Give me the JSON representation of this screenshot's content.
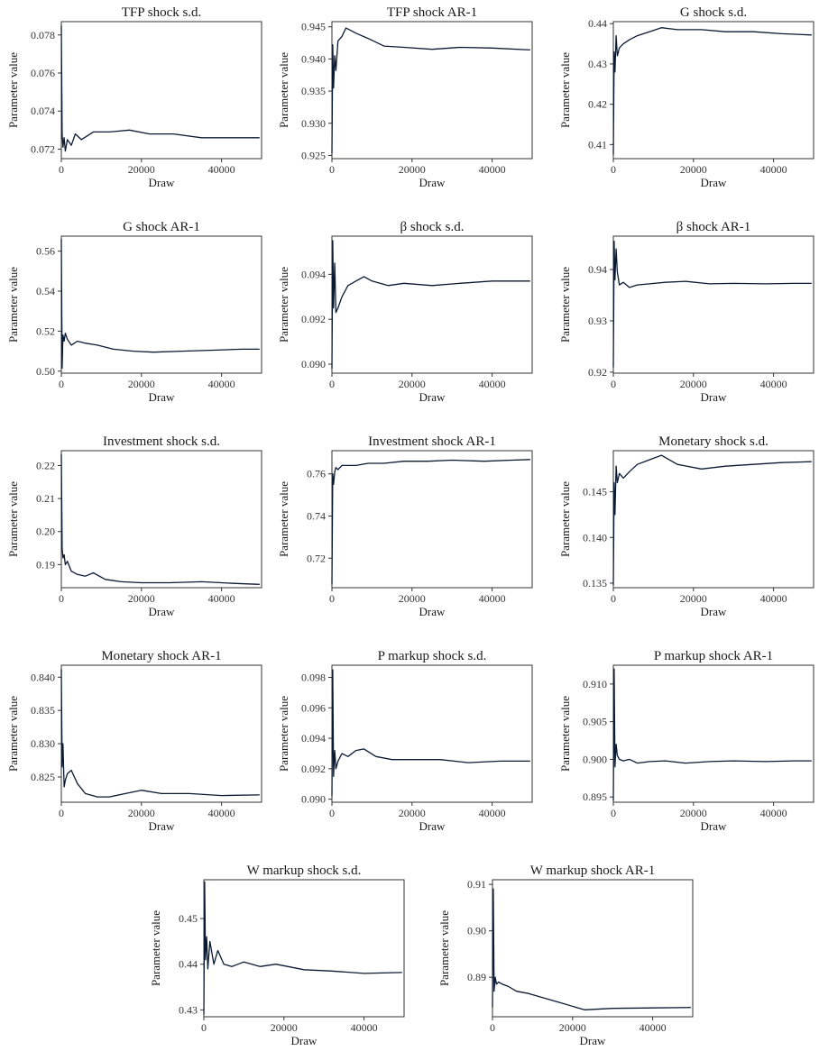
{
  "figure": {
    "line_color": "#0b1a33"
  },
  "chart_data": [
    {
      "type": "line",
      "title": "TFP shock s.d.",
      "xlabel": "Draw",
      "ylabel": "Parameter value",
      "xlim": [
        0,
        50000
      ],
      "ylim": [
        0.0715,
        0.0787
      ],
      "xticks": [
        0,
        20000,
        40000
      ],
      "xtick_labels": [
        "0",
        "20000",
        "40000"
      ],
      "yticks": [
        0.072,
        0.074,
        0.076,
        0.078
      ],
      "ytick_labels": [
        "0.072",
        "0.074",
        "0.076",
        "0.078"
      ],
      "series": [
        {
          "x": [
            0,
            200,
            400,
            700,
            1000,
            1500,
            2500,
            3500,
            5000,
            8000,
            12000,
            17000,
            22000,
            28000,
            35000,
            42000,
            49500
          ],
          "y": [
            0.0785,
            0.0728,
            0.0721,
            0.0726,
            0.0719,
            0.0725,
            0.0722,
            0.0728,
            0.0725,
            0.0729,
            0.0729,
            0.073,
            0.0728,
            0.0728,
            0.0726,
            0.0726,
            0.0726
          ]
        }
      ]
    },
    {
      "type": "line",
      "title": "TFP shock AR-1",
      "xlabel": "Draw",
      "ylabel": "Parameter value",
      "xlim": [
        0,
        50000
      ],
      "ylim": [
        0.9245,
        0.9458
      ],
      "xticks": [
        0,
        20000,
        40000
      ],
      "xtick_labels": [
        "0",
        "20000",
        "40000"
      ],
      "yticks": [
        0.925,
        0.93,
        0.935,
        0.94,
        0.945
      ],
      "ytick_labels": [
        "0.925",
        "0.930",
        "0.935",
        "0.940",
        "0.945"
      ],
      "series": [
        {
          "x": [
            0,
            200,
            400,
            700,
            1000,
            1500,
            2500,
            3500,
            4500,
            6000,
            9000,
            13000,
            18000,
            25000,
            32000,
            40000,
            49500
          ],
          "y": [
            0.9253,
            0.9422,
            0.9355,
            0.9405,
            0.9382,
            0.9428,
            0.9435,
            0.9448,
            0.9445,
            0.944,
            0.9432,
            0.942,
            0.9418,
            0.9415,
            0.9418,
            0.9417,
            0.9414
          ]
        }
      ]
    },
    {
      "type": "line",
      "title": "G shock s.d.",
      "xlabel": "Draw",
      "ylabel": "Parameter value",
      "xlim": [
        0,
        50000
      ],
      "ylim": [
        0.4065,
        0.4405
      ],
      "xticks": [
        0,
        20000,
        40000
      ],
      "xtick_labels": [
        "0",
        "20000",
        "40000"
      ],
      "yticks": [
        0.41,
        0.42,
        0.43,
        0.44
      ],
      "ytick_labels": [
        "0.41",
        "0.42",
        "0.43",
        "0.44"
      ],
      "series": [
        {
          "x": [
            0,
            200,
            400,
            700,
            1000,
            1500,
            2500,
            4000,
            6000,
            9000,
            12000,
            16000,
            22000,
            28000,
            35000,
            42000,
            49500
          ],
          "y": [
            0.4075,
            0.433,
            0.428,
            0.437,
            0.432,
            0.434,
            0.435,
            0.436,
            0.437,
            0.438,
            0.439,
            0.4385,
            0.4385,
            0.438,
            0.438,
            0.4375,
            0.4372
          ]
        }
      ]
    },
    {
      "type": "line",
      "title": "G shock AR-1",
      "xlabel": "Draw",
      "ylabel": "Parameter value",
      "xlim": [
        0,
        50000
      ],
      "ylim": [
        0.499,
        0.5675
      ],
      "xticks": [
        0,
        20000,
        40000
      ],
      "xtick_labels": [
        "0",
        "20000",
        "40000"
      ],
      "yticks": [
        0.5,
        0.52,
        0.54,
        0.56
      ],
      "ytick_labels": [
        "0.50",
        "0.52",
        "0.54",
        "0.56"
      ],
      "series": [
        {
          "x": [
            0,
            200,
            400,
            700,
            1000,
            1500,
            2500,
            4000,
            6000,
            9000,
            13000,
            18000,
            23000,
            30000,
            38000,
            45000,
            49500
          ],
          "y": [
            0.566,
            0.5015,
            0.518,
            0.515,
            0.519,
            0.516,
            0.513,
            0.515,
            0.514,
            0.513,
            0.511,
            0.51,
            0.5095,
            0.51,
            0.5105,
            0.511,
            0.511
          ]
        }
      ]
    },
    {
      "type": "line",
      "title": "β shock s.d.",
      "xlabel": "Draw",
      "ylabel": "Parameter value",
      "xlim": [
        0,
        50000
      ],
      "ylim": [
        0.0896,
        0.0957
      ],
      "xticks": [
        0,
        20000,
        40000
      ],
      "xtick_labels": [
        "0",
        "20000",
        "40000"
      ],
      "yticks": [
        0.09,
        0.092,
        0.094
      ],
      "ytick_labels": [
        "0.090",
        "0.092",
        "0.094"
      ],
      "series": [
        {
          "x": [
            0,
            200,
            400,
            700,
            1000,
            1500,
            2500,
            4000,
            6000,
            8000,
            10000,
            14000,
            18000,
            25000,
            32000,
            40000,
            49500
          ],
          "y": [
            0.0898,
            0.0955,
            0.0925,
            0.0945,
            0.0923,
            0.0925,
            0.093,
            0.0935,
            0.0937,
            0.0939,
            0.0937,
            0.0935,
            0.0936,
            0.0935,
            0.0936,
            0.0937,
            0.0937
          ]
        }
      ]
    },
    {
      "type": "line",
      "title": "β shock AR-1",
      "xlabel": "Draw",
      "ylabel": "Parameter value",
      "xlim": [
        0,
        50000
      ],
      "ylim": [
        0.9198,
        0.9465
      ],
      "xticks": [
        0,
        20000,
        40000
      ],
      "xtick_labels": [
        "0",
        "20000",
        "40000"
      ],
      "yticks": [
        0.92,
        0.93,
        0.94
      ],
      "ytick_labels": [
        "0.92",
        "0.93",
        "0.94"
      ],
      "series": [
        {
          "x": [
            0,
            200,
            400,
            700,
            1000,
            1500,
            2500,
            4000,
            6000,
            9000,
            13000,
            18000,
            24000,
            30000,
            38000,
            45000,
            49500
          ],
          "y": [
            0.921,
            0.9455,
            0.938,
            0.944,
            0.9395,
            0.937,
            0.9375,
            0.9365,
            0.937,
            0.9372,
            0.9375,
            0.9377,
            0.9372,
            0.9373,
            0.9372,
            0.9373,
            0.9373
          ]
        }
      ]
    },
    {
      "type": "line",
      "title": "Investment shock s.d.",
      "xlabel": "Draw",
      "ylabel": "Parameter value",
      "xlim": [
        0,
        50000
      ],
      "ylim": [
        0.183,
        0.2245
      ],
      "xticks": [
        0,
        20000,
        40000
      ],
      "xtick_labels": [
        "0",
        "20000",
        "40000"
      ],
      "yticks": [
        0.19,
        0.2,
        0.21,
        0.22
      ],
      "ytick_labels": [
        "0.19",
        "0.20",
        "0.21",
        "0.22"
      ],
      "series": [
        {
          "x": [
            0,
            200,
            400,
            700,
            1000,
            1500,
            2500,
            4000,
            6000,
            8000,
            11000,
            15000,
            20000,
            27000,
            35000,
            43000,
            49500
          ],
          "y": [
            0.2235,
            0.195,
            0.192,
            0.193,
            0.19,
            0.191,
            0.188,
            0.187,
            0.1865,
            0.1875,
            0.1855,
            0.1848,
            0.1845,
            0.1845,
            0.1848,
            0.1843,
            0.184
          ]
        }
      ]
    },
    {
      "type": "line",
      "title": "Investment shock AR-1",
      "xlabel": "Draw",
      "ylabel": "Parameter value",
      "xlim": [
        0,
        50000
      ],
      "ylim": [
        0.706,
        0.771
      ],
      "xticks": [
        0,
        20000,
        40000
      ],
      "xtick_labels": [
        "0",
        "20000",
        "40000"
      ],
      "yticks": [
        0.72,
        0.74,
        0.76
      ],
      "ytick_labels": [
        "0.72",
        "0.74",
        "0.76"
      ],
      "series": [
        {
          "x": [
            0,
            200,
            400,
            700,
            1000,
            1500,
            2500,
            4000,
            6000,
            9000,
            13000,
            18000,
            24000,
            30000,
            38000,
            45000,
            49500
          ],
          "y": [
            0.7075,
            0.76,
            0.755,
            0.761,
            0.763,
            0.762,
            0.764,
            0.764,
            0.764,
            0.765,
            0.765,
            0.766,
            0.766,
            0.7665,
            0.766,
            0.7665,
            0.7668
          ]
        }
      ]
    },
    {
      "type": "line",
      "title": "Monetary shock s.d.",
      "xlabel": "Draw",
      "ylabel": "Parameter value",
      "xlim": [
        0,
        50000
      ],
      "ylim": [
        0.1345,
        0.1495
      ],
      "xticks": [
        0,
        20000,
        40000
      ],
      "xtick_labels": [
        "0",
        "20000",
        "40000"
      ],
      "yticks": [
        0.135,
        0.14,
        0.145
      ],
      "ytick_labels": [
        "0.135",
        "0.140",
        "0.145"
      ],
      "series": [
        {
          "x": [
            0,
            200,
            400,
            700,
            1000,
            1500,
            2500,
            4000,
            6000,
            9000,
            12000,
            16000,
            22000,
            28000,
            35000,
            42000,
            49500
          ],
          "y": [
            0.1348,
            0.146,
            0.1425,
            0.1478,
            0.146,
            0.147,
            0.1465,
            0.1472,
            0.148,
            0.1485,
            0.149,
            0.148,
            0.1475,
            0.1478,
            0.148,
            0.1482,
            0.1483
          ]
        }
      ]
    },
    {
      "type": "line",
      "title": "Monetary shock AR-1",
      "xlabel": "Draw",
      "ylabel": "Parameter value",
      "xlim": [
        0,
        50000
      ],
      "ylim": [
        0.8212,
        0.8418
      ],
      "xticks": [
        0,
        20000,
        40000
      ],
      "xtick_labels": [
        "0",
        "20000",
        "40000"
      ],
      "yticks": [
        0.825,
        0.83,
        0.835,
        0.84
      ],
      "ytick_labels": [
        "0.825",
        "0.830",
        "0.835",
        "0.840"
      ],
      "series": [
        {
          "x": [
            0,
            200,
            400,
            700,
            1000,
            1500,
            2500,
            4000,
            6000,
            9000,
            12000,
            16000,
            20000,
            25000,
            32000,
            40000,
            49500
          ],
          "y": [
            0.8412,
            0.8265,
            0.83,
            0.8235,
            0.8245,
            0.8255,
            0.826,
            0.824,
            0.8225,
            0.822,
            0.822,
            0.8225,
            0.823,
            0.8225,
            0.8225,
            0.8222,
            0.8223
          ]
        }
      ]
    },
    {
      "type": "line",
      "title": "P markup shock s.d.",
      "xlabel": "Draw",
      "ylabel": "Parameter value",
      "xlim": [
        0,
        50000
      ],
      "ylim": [
        0.0898,
        0.0988
      ],
      "xticks": [
        0,
        20000,
        40000
      ],
      "xtick_labels": [
        "0",
        "20000",
        "40000"
      ],
      "yticks": [
        0.09,
        0.092,
        0.094,
        0.096,
        0.098
      ],
      "ytick_labels": [
        "0.090",
        "0.092",
        "0.094",
        "0.096",
        "0.098"
      ],
      "series": [
        {
          "x": [
            0,
            200,
            400,
            700,
            1000,
            1500,
            2500,
            4000,
            6000,
            8000,
            11000,
            15000,
            20000,
            27000,
            34000,
            42000,
            49500
          ],
          "y": [
            0.0902,
            0.0985,
            0.0915,
            0.0932,
            0.092,
            0.0925,
            0.093,
            0.0928,
            0.0932,
            0.0933,
            0.0928,
            0.0926,
            0.0926,
            0.0926,
            0.0924,
            0.0925,
            0.0925
          ]
        }
      ]
    },
    {
      "type": "line",
      "title": "P markup shock AR-1",
      "xlabel": "Draw",
      "ylabel": "Parameter value",
      "xlim": [
        0,
        50000
      ],
      "ylim": [
        0.8943,
        0.9125
      ],
      "xticks": [
        0,
        20000,
        40000
      ],
      "xtick_labels": [
        "0",
        "20000",
        "40000"
      ],
      "yticks": [
        0.895,
        0.9,
        0.905,
        0.91
      ],
      "ytick_labels": [
        "0.895",
        "0.900",
        "0.905",
        "0.910"
      ],
      "series": [
        {
          "x": [
            0,
            200,
            400,
            700,
            1000,
            1500,
            2500,
            4000,
            6000,
            9000,
            13000,
            18000,
            24000,
            30000,
            38000,
            45000,
            49500
          ],
          "y": [
            0.8945,
            0.912,
            0.899,
            0.902,
            0.9005,
            0.9,
            0.8998,
            0.9,
            0.8995,
            0.8997,
            0.8998,
            0.8995,
            0.8997,
            0.8998,
            0.8997,
            0.8998,
            0.8998
          ]
        }
      ]
    },
    {
      "type": "line",
      "title": "W markup shock s.d.",
      "xlabel": "Draw",
      "ylabel": "Parameter value",
      "xlim": [
        0,
        50000
      ],
      "ylim": [
        0.4285,
        0.4585
      ],
      "xticks": [
        0,
        20000,
        40000
      ],
      "xtick_labels": [
        "0",
        "20000",
        "40000"
      ],
      "yticks": [
        0.43,
        0.44,
        0.45
      ],
      "ytick_labels": [
        "0.43",
        "0.44",
        "0.45"
      ],
      "series": [
        {
          "x": [
            0,
            200,
            400,
            700,
            1000,
            1500,
            2500,
            3500,
            5000,
            7000,
            10000,
            14000,
            18000,
            25000,
            32000,
            40000,
            49500
          ],
          "y": [
            0.429,
            0.458,
            0.441,
            0.446,
            0.439,
            0.445,
            0.44,
            0.443,
            0.44,
            0.4395,
            0.4405,
            0.4395,
            0.44,
            0.4388,
            0.4385,
            0.438,
            0.4382
          ]
        }
      ]
    },
    {
      "type": "line",
      "title": "W markup shock AR-1",
      "xlabel": "Draw",
      "ylabel": "Parameter value",
      "xlim": [
        0,
        50000
      ],
      "ylim": [
        0.8815,
        0.911
      ],
      "xticks": [
        0,
        20000,
        40000
      ],
      "xtick_labels": [
        "0",
        "20000",
        "40000"
      ],
      "yticks": [
        0.89,
        0.9,
        0.91
      ],
      "ytick_labels": [
        "0.89",
        "0.90",
        "0.91"
      ],
      "series": [
        {
          "x": [
            0,
            200,
            400,
            700,
            1000,
            1500,
            2500,
            4000,
            6000,
            9000,
            13000,
            17000,
            21000,
            23000,
            30000,
            40000,
            49500
          ],
          "y": [
            0.8835,
            0.909,
            0.887,
            0.89,
            0.8885,
            0.889,
            0.8885,
            0.888,
            0.887,
            0.8865,
            0.8855,
            0.8845,
            0.8835,
            0.883,
            0.8833,
            0.8834,
            0.8835
          ]
        }
      ]
    }
  ]
}
